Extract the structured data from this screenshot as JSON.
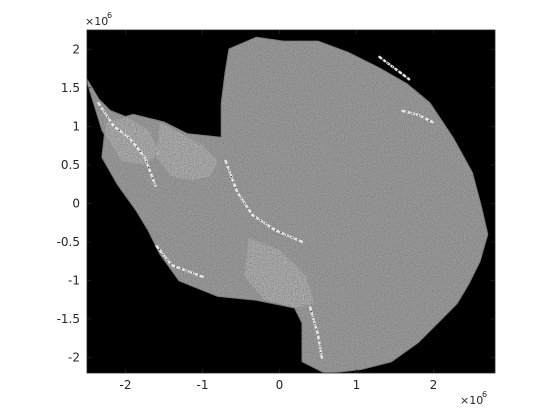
{
  "chart_data": {
    "type": "heatmap",
    "title": "",
    "xlabel": "",
    "ylabel": "",
    "xlim": [
      -2.5,
      2.8
    ],
    "ylim": [
      -2.2,
      2.25
    ],
    "x_exponent_label": "×10",
    "x_exponent_power": "6",
    "y_exponent_label": "×10",
    "y_exponent_power": "6",
    "x_ticks": [
      {
        "value": -2,
        "label": "-2"
      },
      {
        "value": -1,
        "label": "-1"
      },
      {
        "value": 0,
        "label": "0"
      },
      {
        "value": 1,
        "label": "1"
      },
      {
        "value": 2,
        "label": "2"
      }
    ],
    "y_ticks": [
      {
        "value": 2,
        "label": "2"
      },
      {
        "value": 1.5,
        "label": "1.5"
      },
      {
        "value": 1,
        "label": "1"
      },
      {
        "value": 0.5,
        "label": "0.5"
      },
      {
        "value": 0,
        "label": "0"
      },
      {
        "value": -0.5,
        "label": "-0.5"
      },
      {
        "value": -1,
        "label": "-1"
      },
      {
        "value": -1.5,
        "label": "-1.5"
      },
      {
        "value": -2,
        "label": "-2"
      }
    ],
    "background_color": "#000000",
    "data_color": "#7b7b7b",
    "grid": false,
    "ice_sheet_outline": [
      [
        -0.65,
        2.0
      ],
      [
        -0.3,
        2.15
      ],
      [
        0.05,
        2.1
      ],
      [
        0.5,
        2.1
      ],
      [
        0.9,
        1.95
      ],
      [
        1.3,
        1.75
      ],
      [
        1.65,
        1.55
      ],
      [
        1.95,
        1.3
      ],
      [
        2.25,
        0.85
      ],
      [
        2.5,
        0.4
      ],
      [
        2.62,
        -0.05
      ],
      [
        2.7,
        -0.4
      ],
      [
        2.6,
        -0.75
      ],
      [
        2.45,
        -1.05
      ],
      [
        2.3,
        -1.3
      ],
      [
        2.05,
        -1.55
      ],
      [
        1.8,
        -1.8
      ],
      [
        1.45,
        -2.05
      ],
      [
        1.05,
        -2.15
      ],
      [
        0.6,
        -2.2
      ],
      [
        0.3,
        -2.05
      ],
      [
        0.3,
        -1.55
      ],
      [
        0.2,
        -1.35
      ],
      [
        -0.3,
        -1.25
      ],
      [
        -0.8,
        -1.2
      ],
      [
        -1.3,
        -1.0
      ],
      [
        -1.55,
        -0.65
      ],
      [
        -1.7,
        -0.35
      ],
      [
        -1.85,
        -0.1
      ],
      [
        -2.1,
        0.25
      ],
      [
        -2.3,
        0.6
      ],
      [
        -2.25,
        1.05
      ],
      [
        -1.9,
        1.15
      ],
      [
        -1.5,
        1.05
      ],
      [
        -1.2,
        0.9
      ],
      [
        -0.75,
        0.85
      ],
      [
        -0.75,
        1.3
      ],
      [
        -0.7,
        1.7
      ]
    ],
    "ronne_filchner_shelf": [
      [
        -1.55,
        1.05
      ],
      [
        -1.35,
        0.95
      ],
      [
        -1.0,
        0.75
      ],
      [
        -0.8,
        0.55
      ],
      [
        -0.9,
        0.35
      ],
      [
        -1.15,
        0.3
      ],
      [
        -1.4,
        0.35
      ],
      [
        -1.6,
        0.6
      ]
    ],
    "ross_shelf": [
      [
        -0.4,
        -0.45
      ],
      [
        0.0,
        -0.6
      ],
      [
        0.35,
        -0.95
      ],
      [
        0.45,
        -1.3
      ],
      [
        0.2,
        -1.35
      ],
      [
        -0.2,
        -1.25
      ],
      [
        -0.45,
        -0.95
      ]
    ],
    "peninsula": [
      [
        -2.5,
        1.6
      ],
      [
        -2.35,
        1.35
      ],
      [
        -2.2,
        1.2
      ],
      [
        -1.95,
        1.1
      ],
      [
        -1.7,
        0.95
      ],
      [
        -1.55,
        0.65
      ],
      [
        -1.75,
        0.5
      ],
      [
        -2.05,
        0.55
      ],
      [
        -2.3,
        0.95
      ]
    ],
    "bright_edges": [
      [
        [
          -0.7,
          0.55
        ],
        [
          -0.55,
          0.15
        ],
        [
          -0.35,
          -0.15
        ],
        [
          -0.05,
          -0.35
        ],
        [
          0.3,
          -0.5
        ]
      ],
      [
        [
          0.4,
          -1.35
        ],
        [
          0.5,
          -1.7
        ],
        [
          0.55,
          -2.0
        ]
      ],
      [
        [
          -2.35,
          1.3
        ],
        [
          -2.15,
          1.0
        ],
        [
          -1.95,
          0.85
        ],
        [
          -1.75,
          0.6
        ],
        [
          -1.6,
          0.2
        ]
      ],
      [
        [
          -1.0,
          -0.95
        ],
        [
          -1.4,
          -0.8
        ],
        [
          -1.6,
          -0.55
        ]
      ],
      [
        [
          1.6,
          1.2
        ],
        [
          1.8,
          1.15
        ],
        [
          2.0,
          1.05
        ]
      ],
      [
        [
          1.3,
          1.9
        ],
        [
          1.5,
          1.75
        ],
        [
          1.7,
          1.6
        ]
      ]
    ]
  }
}
